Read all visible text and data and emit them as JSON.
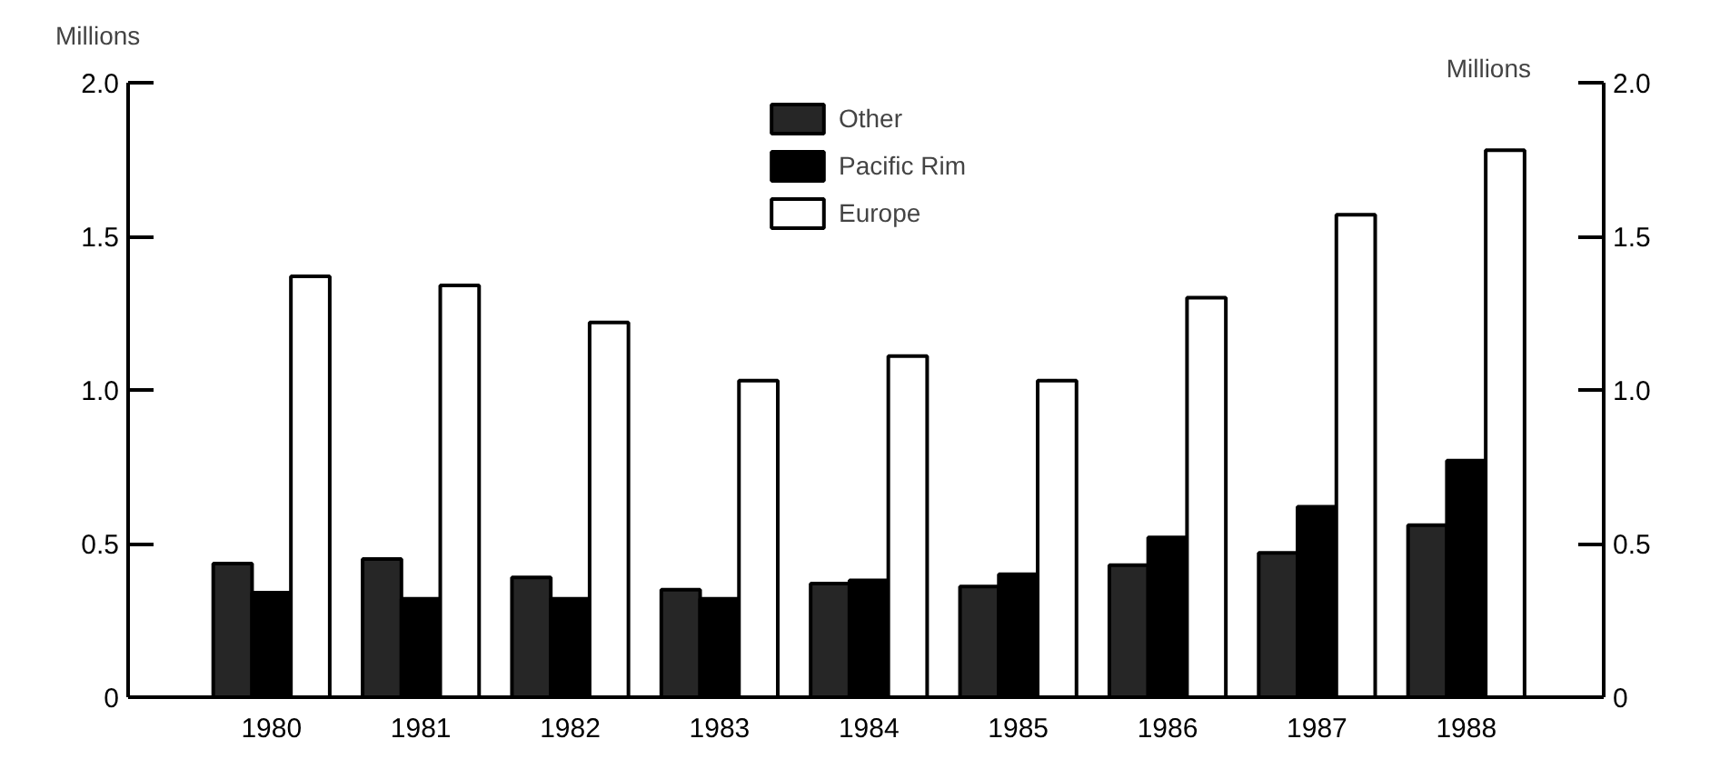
{
  "chart_data": {
    "type": "bar",
    "ylabel": "Millions",
    "y2label": "Millions",
    "categories": [
      "1980",
      "1981",
      "1982",
      "1983",
      "1984",
      "1985",
      "1986",
      "1987",
      "1988"
    ],
    "series": [
      {
        "name": "Other",
        "color": "#262626",
        "values": [
          0.435,
          0.45,
          0.39,
          0.35,
          0.37,
          0.36,
          0.43,
          0.47,
          0.56
        ]
      },
      {
        "name": "Pacific Rim",
        "color": "#000000",
        "values": [
          0.34,
          0.32,
          0.32,
          0.32,
          0.38,
          0.4,
          0.52,
          0.62,
          0.77
        ]
      },
      {
        "name": "Europe",
        "color": "#ffffff",
        "values": [
          1.37,
          1.34,
          1.22,
          1.03,
          1.11,
          1.03,
          1.3,
          1.57,
          1.78
        ]
      }
    ],
    "ylim": [
      0,
      2.0
    ],
    "yticks": [
      0,
      0.5,
      {
        "value": 1,
        "label": "1.0"
      },
      1.5,
      {
        "value": 2,
        "label": "2.0"
      }
    ],
    "y2lim": [
      0,
      2.0
    ],
    "y2ticks": [
      0,
      0.5,
      {
        "value": 1,
        "label": "1.0"
      },
      1.5,
      {
        "value": 2,
        "label": "2.0"
      }
    ],
    "grid": false,
    "legend": "top"
  }
}
